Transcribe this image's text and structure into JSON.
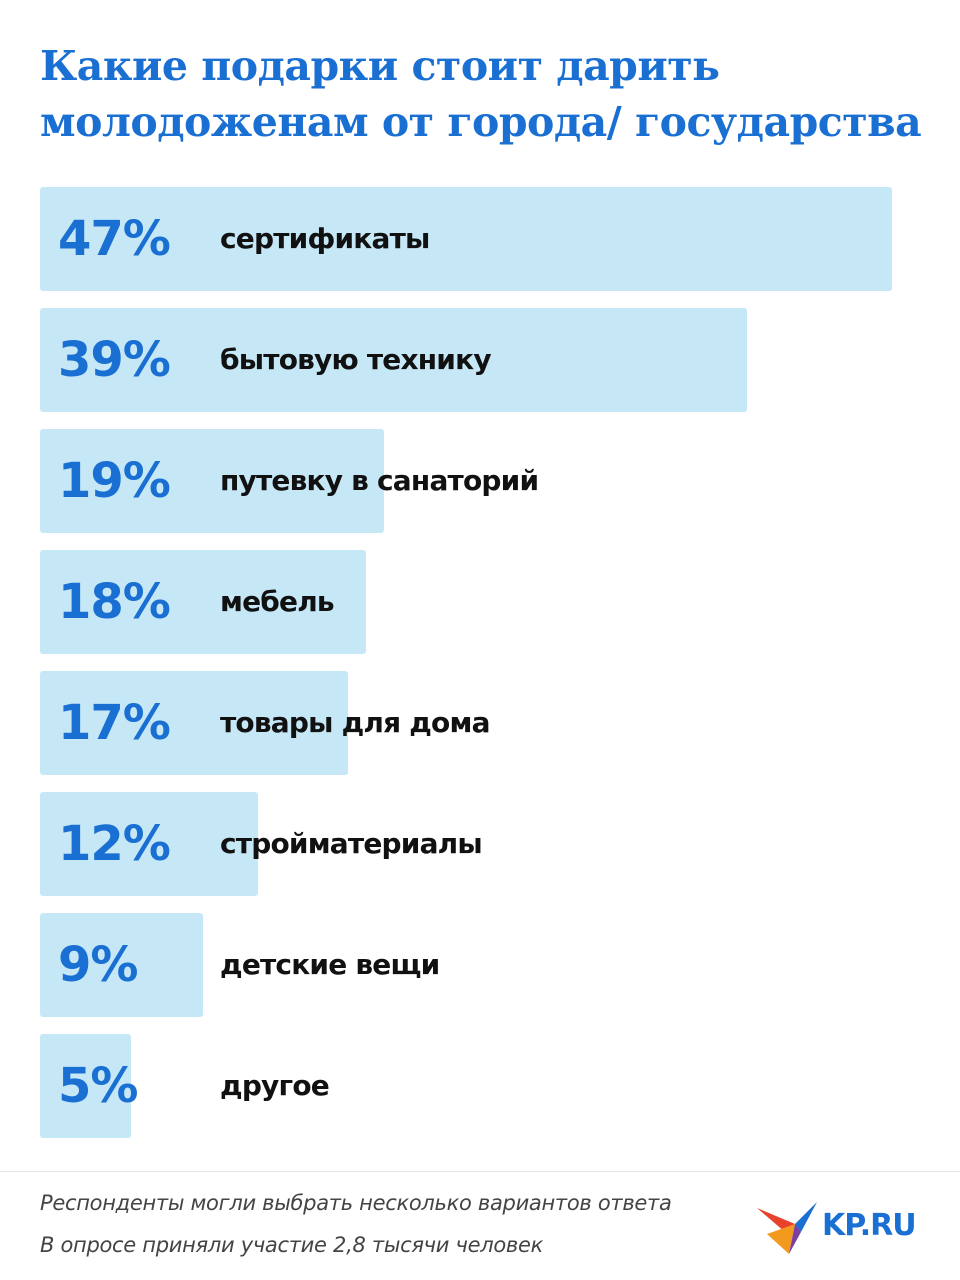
{
  "chart_data": {
    "type": "bar",
    "title": [
      "Какие подарки стоит дарить",
      "молодоженам от города/ государства"
    ],
    "categories": [
      "сертификаты",
      "бытовую технику",
      "путевку в санаторий",
      "мебель",
      "товары для дома",
      "стройматериалы",
      "детские вещи",
      "другое"
    ],
    "values": [
      47,
      39,
      19,
      18,
      17,
      12,
      9,
      5
    ],
    "value_labels": [
      "47%",
      "39%",
      "19%",
      "18%",
      "17%",
      "12%",
      "9%",
      "5%"
    ],
    "color": "#c6e8f6",
    "label_color": "#1a6fd3",
    "notes": [
      "Респонденты могли выбрать несколько вариантов ответа",
      "В опросе приняли участие 2,8 тысячи человек"
    ],
    "logo": "KP.RU"
  }
}
